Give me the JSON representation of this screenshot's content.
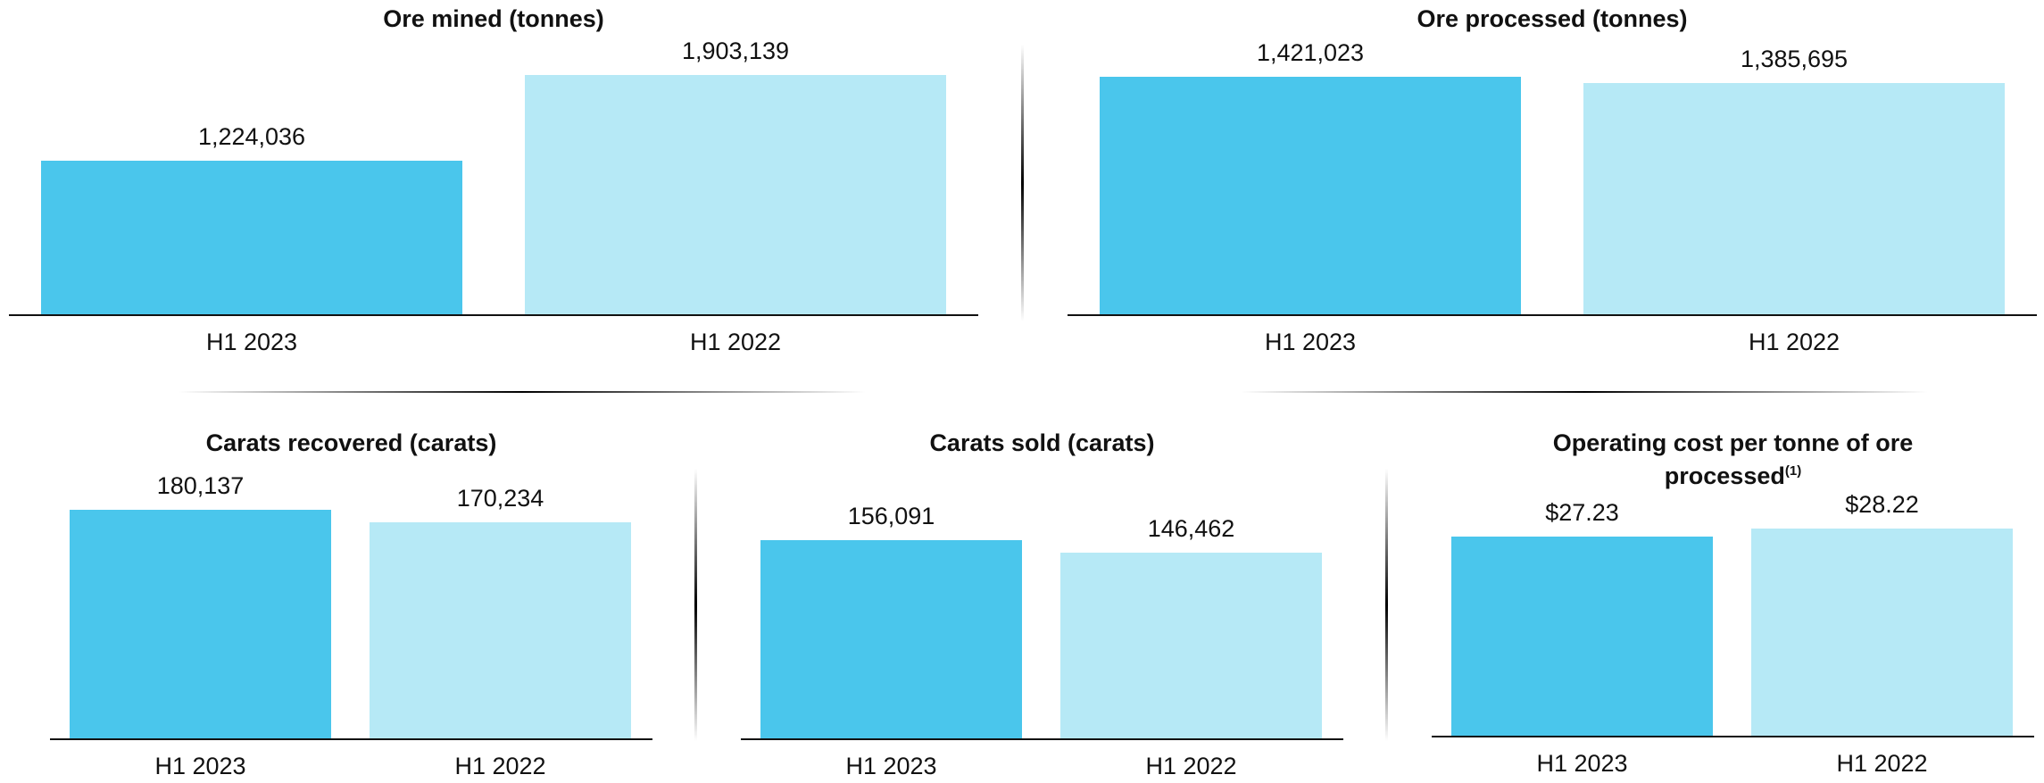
{
  "colors": {
    "current": "#4AC6EC",
    "prior": "#B6E9F6"
  },
  "chart_data": [
    {
      "type": "bar",
      "title": "Ore mined (tonnes)",
      "title_sup": "",
      "categories": [
        "H1 2023",
        "H1 2022"
      ],
      "values": [
        1224036,
        1903139
      ],
      "value_labels": [
        "1,224,036",
        "1,903,139"
      ],
      "ylim": [
        0,
        1903139
      ]
    },
    {
      "type": "bar",
      "title": "Ore processed (tonnes)",
      "title_sup": "",
      "categories": [
        "H1 2023",
        "H1 2022"
      ],
      "values": [
        1421023,
        1385695
      ],
      "value_labels": [
        "1,421,023",
        "1,385,695"
      ],
      "ylim": [
        0,
        1421023
      ]
    },
    {
      "type": "bar",
      "title": "Carats recovered (carats)",
      "title_sup": "",
      "categories": [
        "H1 2023",
        "H1 2022"
      ],
      "values": [
        180137,
        170234
      ],
      "value_labels": [
        "180,137",
        "170,234"
      ],
      "ylim": [
        0,
        180137
      ]
    },
    {
      "type": "bar",
      "title": "Carats sold (carats)",
      "title_sup": "",
      "categories": [
        "H1 2023",
        "H1 2022"
      ],
      "values": [
        156091,
        146462
      ],
      "value_labels": [
        "156,091",
        "146,462"
      ],
      "ylim": [
        0,
        180137
      ]
    },
    {
      "type": "bar",
      "title": "Operating cost per tonne of ore processed",
      "title_sup": "(1)",
      "categories": [
        "H1 2023",
        "H1 2022"
      ],
      "values": [
        27.23,
        28.22
      ],
      "value_labels": [
        "$27.23",
        "$28.22"
      ],
      "ylim": [
        0,
        31.2
      ]
    }
  ]
}
